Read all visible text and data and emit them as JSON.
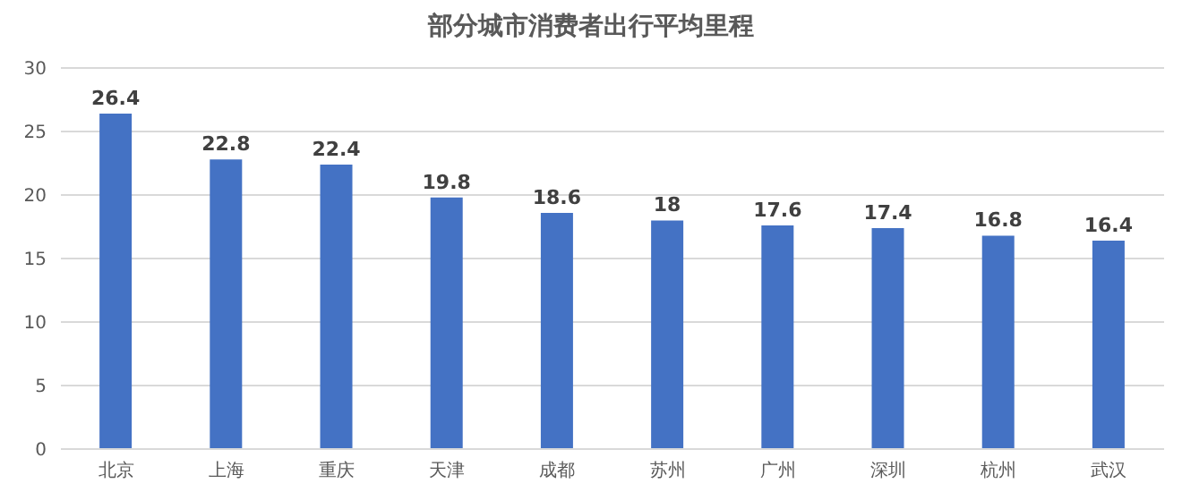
{
  "chart_data": {
    "type": "bar",
    "title": "部分城市消费者出行平均里程",
    "categories": [
      "北京",
      "上海",
      "重庆",
      "天津",
      "成都",
      "苏州",
      "广州",
      "深圳",
      "杭州",
      "武汉"
    ],
    "values": [
      26.4,
      22.8,
      22.4,
      19.8,
      18.6,
      18,
      17.6,
      17.4,
      16.8,
      16.4
    ],
    "color": "#4472c4",
    "ylim": [
      0,
      30
    ],
    "yticks": [
      0,
      5,
      10,
      15,
      20,
      25,
      30
    ],
    "grid": "y",
    "data_labels": true
  }
}
